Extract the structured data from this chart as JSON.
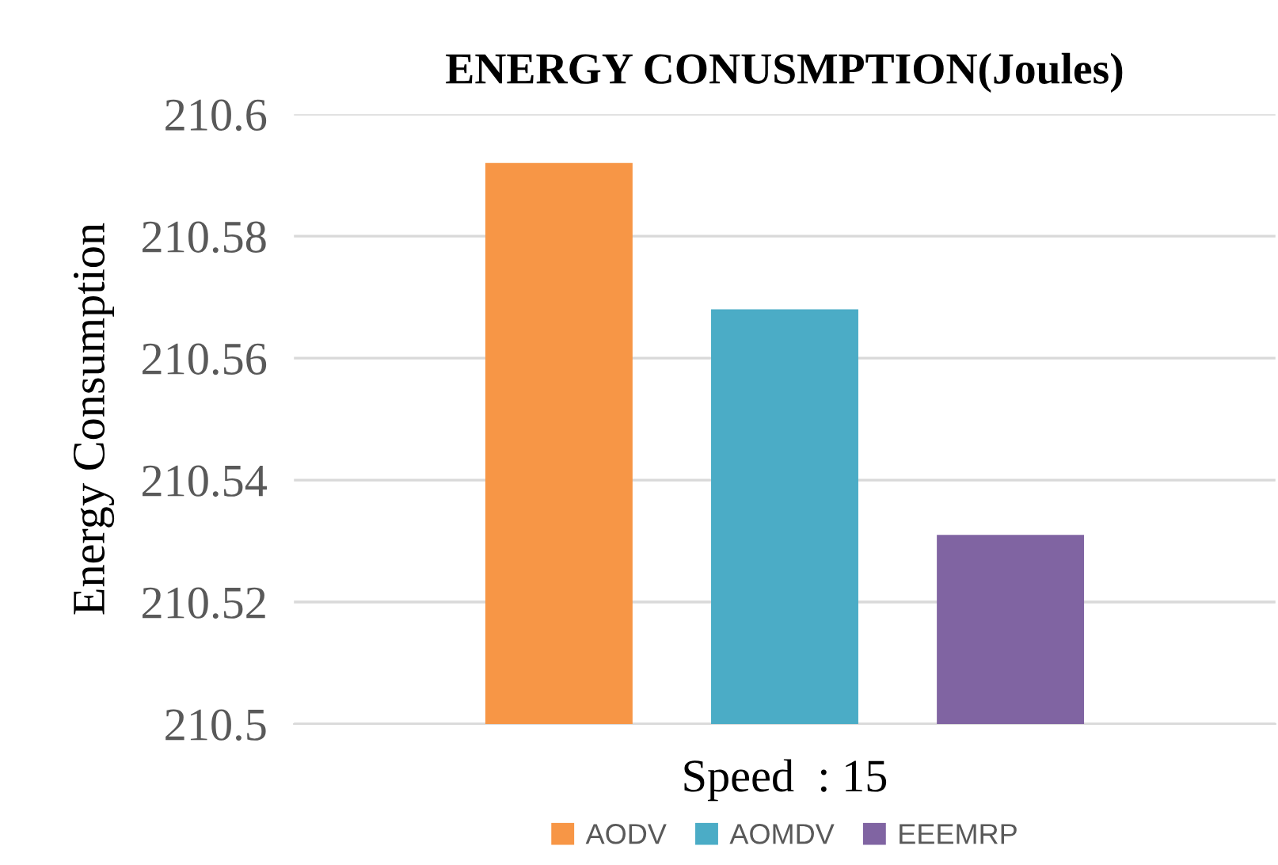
{
  "chart_data": {
    "type": "bar",
    "title": "ENERGY CONUSMPTION(Joules)",
    "xlabel": "Speed  : 15",
    "ylabel": "Energy Consumption",
    "categories": [
      null
    ],
    "series": [
      {
        "name": "AODV",
        "color": "#f79646",
        "values": [
          210.592
        ]
      },
      {
        "name": "AOMDV",
        "color": "#4bacc6",
        "values": [
          210.568
        ]
      },
      {
        "name": "EEEMRP",
        "color": "#8064a2",
        "values": [
          210.531
        ]
      }
    ],
    "ylim": [
      210.5,
      210.6
    ],
    "yticks": [
      210.5,
      210.52,
      210.54,
      210.56,
      210.58,
      210.6
    ],
    "grid": "y",
    "legend": "bottom"
  }
}
